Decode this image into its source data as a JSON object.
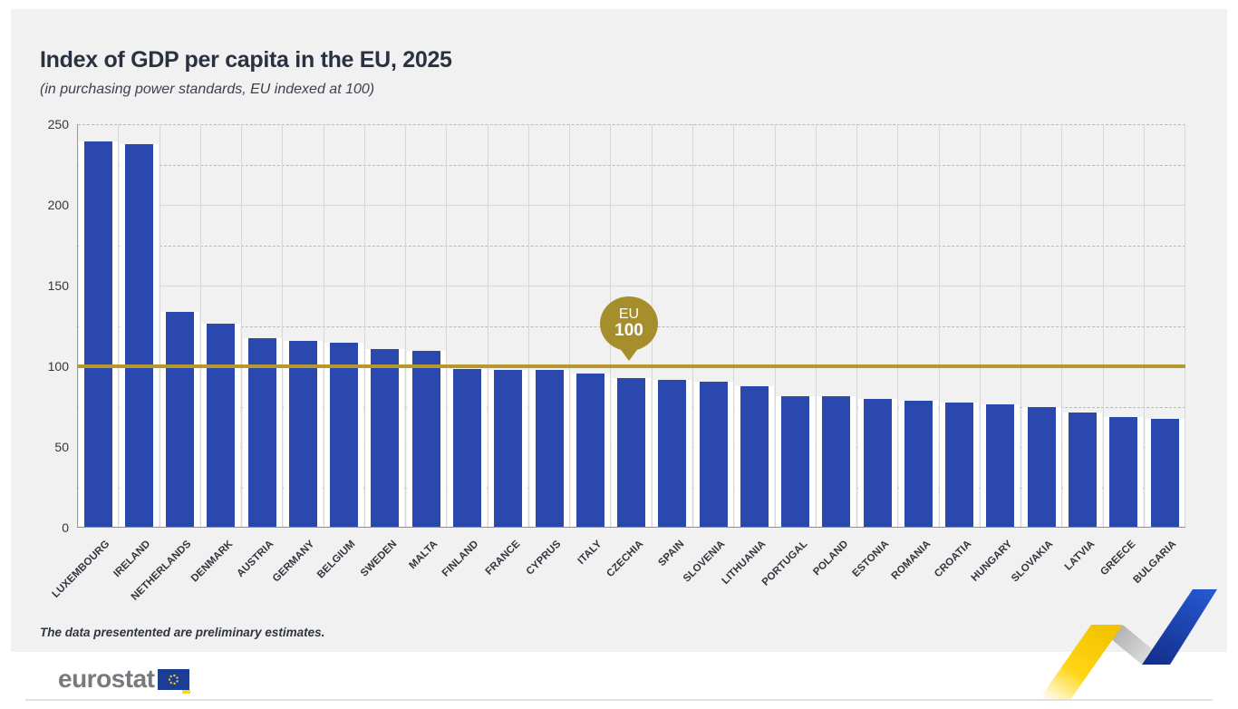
{
  "header": {
    "title": "Index of GDP per capita in the EU, 2025",
    "subtitle": "(in purchasing power standards, EU indexed at 100)"
  },
  "chart_data": {
    "type": "bar",
    "title": "Index of GDP per capita in the EU, 2025",
    "subtitle": "(in purchasing power standards, EU indexed at 100)",
    "categories": [
      "LUXEMBOURG",
      "IRELAND",
      "NETHERLANDS",
      "DENMARK",
      "AUSTRIA",
      "GERMANY",
      "BELGIUM",
      "SWEDEN",
      "MALTA",
      "FINLAND",
      "FRANCE",
      "CYPRUS",
      "ITALY",
      "CZECHIA",
      "SPAIN",
      "SLOVENIA",
      "LITHUANIA",
      "PORTUGAL",
      "POLAND",
      "ESTONIA",
      "ROMANIA",
      "CROATIA",
      "HUNGARY",
      "SLOVAKIA",
      "LATVIA",
      "GREECE",
      "BULGARIA"
    ],
    "values": [
      239,
      237,
      133,
      126,
      117,
      115,
      114,
      110,
      109,
      98,
      97,
      97,
      95,
      92,
      91,
      90,
      87,
      81,
      81,
      79,
      78,
      77,
      76,
      74,
      71,
      68,
      67
    ],
    "xlabel": "",
    "ylabel": "",
    "ylim": [
      0,
      250
    ],
    "yticks": [
      0,
      50,
      100,
      150,
      200,
      250
    ],
    "grid": true,
    "legend": false,
    "reference_line": {
      "value": 100,
      "label_line1": "EU",
      "label_line2": "100",
      "color": "#b5992e"
    },
    "bar_color": "#2b48ae"
  },
  "footnote": "The data presentented are preliminary estimates.",
  "logo": {
    "wordmark": "eurostat"
  },
  "colors": {
    "card_background": "#f1f1f2",
    "bar_blue": "#2b48ae",
    "reference_gold": "#b5992e",
    "badge_gold": "#a78e2c",
    "ribbon_yellow": "#ffd617",
    "ribbon_blue": "#2154c6",
    "flag_blue": "#1c3d94",
    "title_text": "#2a3140"
  }
}
